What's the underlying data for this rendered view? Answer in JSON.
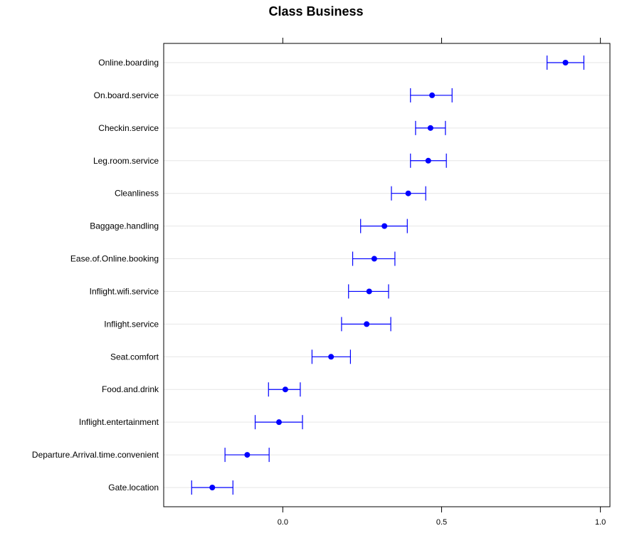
{
  "chart_data": {
    "type": "dotplot",
    "title": "Class Business",
    "xlabel": "",
    "ylabel": "",
    "xlim": [
      -0.375,
      1.03
    ],
    "x_ticks": [
      0.0,
      0.5,
      1.0
    ],
    "x_tick_labels": [
      "0.0",
      "0.5",
      "1.0"
    ],
    "colors": {
      "series": "#0000ff",
      "grid": "#e6e6e6",
      "frame": "#000000"
    },
    "categories": [
      "Online.boarding",
      "On.board.service",
      "Checkin.service",
      "Leg.room.service",
      "Cleanliness",
      "Baggage.handling",
      "Ease.of.Online.booking",
      "Inflight.wifi.service",
      "Inflight.service",
      "Seat.comfort",
      "Food.and.drink",
      "Inflight.entertainment",
      "Departure.Arrival.time.convenient",
      "Gate.location"
    ],
    "estimate": [
      0.89,
      0.47,
      0.465,
      0.458,
      0.395,
      0.32,
      0.288,
      0.272,
      0.264,
      0.152,
      0.008,
      -0.012,
      -0.112,
      -0.222
    ],
    "lower": [
      0.832,
      0.402,
      0.418,
      0.402,
      0.342,
      0.245,
      0.22,
      0.207,
      0.185,
      0.092,
      -0.045,
      -0.087,
      -0.182,
      -0.287
    ],
    "upper": [
      0.948,
      0.533,
      0.512,
      0.515,
      0.45,
      0.392,
      0.353,
      0.333,
      0.34,
      0.213,
      0.055,
      0.062,
      -0.043,
      -0.157
    ]
  }
}
